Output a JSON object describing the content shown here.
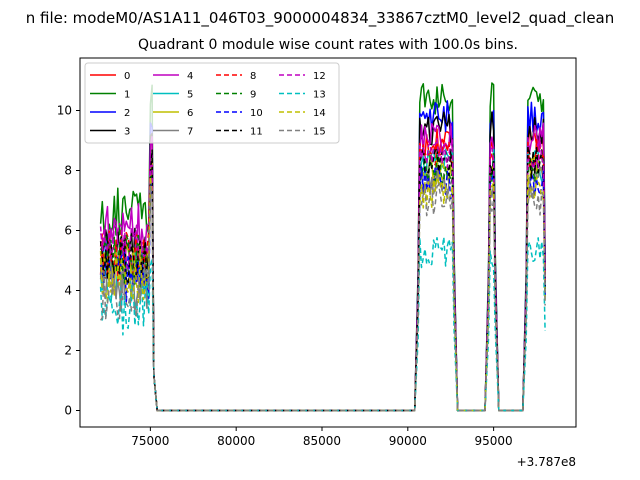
{
  "chart_data": {
    "type": "line",
    "suptitle": "n file: modeM0/AS1A11_046T03_9000004834_33867cztM0_level2_quad_clean",
    "title": "Quadrant 0 module wise count rates with 100.0s bins.",
    "xlabel": "",
    "ylabel": "",
    "x_offset_label": "+3.787e8",
    "xlim": [
      70900,
      99800
    ],
    "ylim": [
      -0.55,
      11.75
    ],
    "x_ticks": [
      75000,
      80000,
      85000,
      90000,
      95000
    ],
    "x_tick_labels": [
      "75000",
      "80000",
      "85000",
      "90000",
      "95000"
    ],
    "y_ticks": [
      0,
      2,
      4,
      6,
      8,
      10
    ],
    "y_tick_labels": [
      "0",
      "2",
      "4",
      "6",
      "8",
      "10"
    ],
    "grid": false,
    "legend": {
      "placement": "top-left",
      "columns": 4
    },
    "segments": [
      {
        "x_start": 72100,
        "x_end": 75200,
        "kind": "noisy"
      },
      {
        "x_start": 75400,
        "x_end": 90400,
        "kind": "zero"
      },
      {
        "x_start": 90600,
        "x_end": 92700,
        "kind": "noisy"
      },
      {
        "x_start": 92900,
        "x_end": 94500,
        "kind": "zero"
      },
      {
        "x_start": 94700,
        "x_end": 95100,
        "kind": "noisy"
      },
      {
        "x_start": 95300,
        "x_end": 96700,
        "kind": "zero"
      },
      {
        "x_start": 96900,
        "x_end": 98000,
        "kind": "noisy"
      }
    ],
    "series": [
      {
        "name": "0",
        "color": "#ff0000",
        "dash": "solid",
        "level": 5.0,
        "peak": 9.0
      },
      {
        "name": "1",
        "color": "#008000",
        "dash": "solid",
        "level": 6.6,
        "peak": 10.4
      },
      {
        "name": "2",
        "color": "#0000ff",
        "dash": "solid",
        "level": 4.8,
        "peak": 9.8
      },
      {
        "name": "3",
        "color": "#000000",
        "dash": "solid",
        "level": 5.4,
        "peak": 9.4
      },
      {
        "name": "4",
        "color": "#bf00bf",
        "dash": "solid",
        "level": 6.0,
        "peak": 9.1
      },
      {
        "name": "5",
        "color": "#00bfbf",
        "dash": "solid",
        "level": 4.5,
        "peak": 8.2
      },
      {
        "name": "6",
        "color": "#bfbf00",
        "dash": "solid",
        "level": 5.0,
        "peak": 8.0
      },
      {
        "name": "7",
        "color": "#808080",
        "dash": "solid",
        "level": 4.2,
        "peak": 7.6
      },
      {
        "name": "8",
        "color": "#ff0000",
        "dash": "dashed",
        "level": 5.2,
        "peak": 8.5
      },
      {
        "name": "9",
        "color": "#008000",
        "dash": "dashed",
        "level": 5.0,
        "peak": 8.1
      },
      {
        "name": "10",
        "color": "#0000ff",
        "dash": "dashed",
        "level": 4.4,
        "peak": 7.6
      },
      {
        "name": "11",
        "color": "#000000",
        "dash": "dashed",
        "level": 5.1,
        "peak": 8.3
      },
      {
        "name": "12",
        "color": "#bf00bf",
        "dash": "dashed",
        "level": 5.5,
        "peak": 8.6
      },
      {
        "name": "13",
        "color": "#00bfbf",
        "dash": "dashed",
        "level": 3.4,
        "peak": 5.3
      },
      {
        "name": "14",
        "color": "#bfbf00",
        "dash": "dashed",
        "level": 4.5,
        "peak": 7.3
      },
      {
        "name": "15",
        "color": "#808080",
        "dash": "dashed",
        "level": 3.9,
        "peak": 7.0
      }
    ]
  }
}
